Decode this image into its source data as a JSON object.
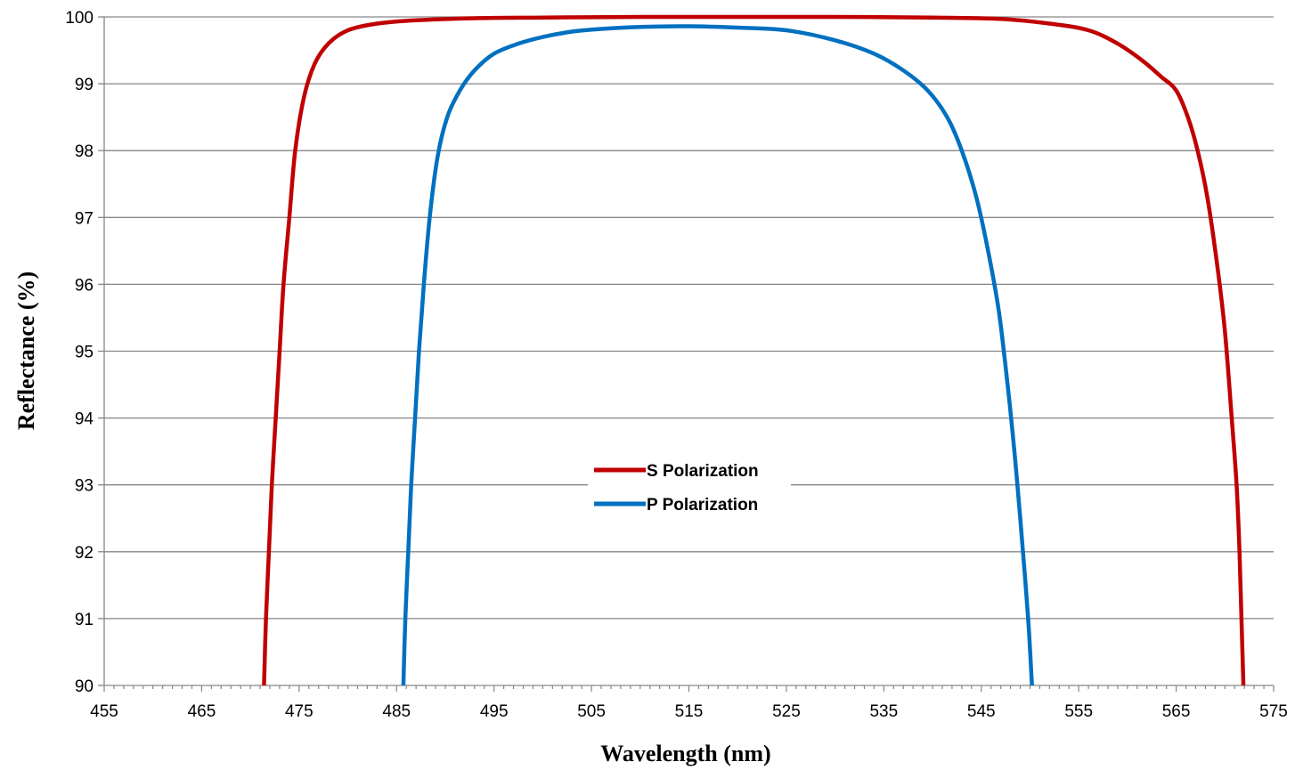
{
  "chart_data": {
    "type": "line",
    "xlabel": "Wavelength (nm)",
    "ylabel": "Reflectance (%)",
    "xlim": [
      455,
      575
    ],
    "ylim": [
      90,
      100
    ],
    "x_ticks": [
      455,
      465,
      475,
      485,
      495,
      505,
      515,
      525,
      535,
      545,
      555,
      565,
      575
    ],
    "x_tick_labels": [
      "455",
      "465",
      "475",
      "485",
      "495",
      "505",
      "515",
      "525",
      "535",
      "545",
      "555",
      "565",
      "575"
    ],
    "y_ticks": [
      90,
      91,
      92,
      93,
      94,
      95,
      96,
      97,
      98,
      99,
      100
    ],
    "y_tick_labels": [
      "90",
      "91",
      "92",
      "93",
      "94",
      "95",
      "96",
      "97",
      "98",
      "99",
      "100"
    ],
    "grid": "horizontal",
    "legend_position": "center",
    "series": [
      {
        "name": "S Polarization",
        "color": "#C00000",
        "x": [
          471.4,
          471.6,
          471.9,
          472.2,
          472.6,
          473.0,
          473.4,
          474.0,
          474.6,
          475.5,
          476.6,
          478.0,
          480.0,
          483.0,
          487.0,
          493.0,
          500.0,
          510.0,
          520.0,
          530.0,
          540.0,
          547.0,
          552.0,
          556.0,
          559.0,
          561.5,
          563.5,
          565.0,
          566.2,
          567.2,
          568.2,
          569.2,
          570.0,
          570.7,
          571.2,
          571.5,
          571.7,
          571.9
        ],
        "y": [
          90.0,
          91.0,
          92.0,
          93.0,
          94.0,
          95.0,
          96.0,
          97.0,
          98.0,
          98.8,
          99.3,
          99.6,
          99.8,
          99.9,
          99.95,
          99.98,
          99.99,
          100.0,
          100.0,
          100.0,
          99.99,
          99.97,
          99.9,
          99.8,
          99.6,
          99.35,
          99.1,
          98.9,
          98.5,
          98.0,
          97.3,
          96.3,
          95.3,
          94.0,
          93.0,
          92.0,
          91.0,
          90.0
        ]
      },
      {
        "name": "P Polarization",
        "color": "#0070C0",
        "x": [
          485.7,
          485.9,
          486.2,
          486.5,
          486.9,
          487.3,
          487.8,
          488.4,
          489.2,
          490.2,
          491.5,
          493.0,
          495.0,
          497.5,
          500.0,
          503.0,
          506.0,
          510.0,
          515.0,
          520.0,
          525.0,
          530.0,
          534.0,
          537.0,
          539.5,
          541.5,
          543.0,
          544.5,
          545.7,
          546.8,
          547.7,
          548.4,
          549.0,
          549.5,
          549.9,
          550.2
        ],
        "y": [
          90.0,
          91.0,
          92.0,
          93.0,
          94.0,
          95.0,
          96.0,
          97.0,
          97.9,
          98.5,
          98.9,
          99.2,
          99.45,
          99.6,
          99.7,
          99.78,
          99.82,
          99.85,
          99.86,
          99.84,
          99.8,
          99.65,
          99.45,
          99.2,
          98.9,
          98.5,
          98.0,
          97.3,
          96.5,
          95.6,
          94.5,
          93.5,
          92.5,
          91.6,
          90.8,
          90.0
        ]
      }
    ]
  }
}
